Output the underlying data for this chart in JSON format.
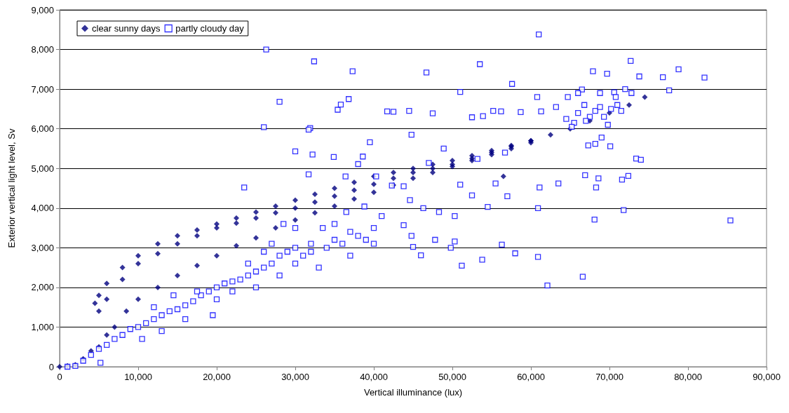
{
  "chart_data": {
    "type": "scatter",
    "xlabel": "Vertical illuminance (lux)",
    "ylabel": "Exterior vertical light level, Sv",
    "xlim": [
      0,
      90000
    ],
    "ylim": [
      0,
      9000
    ],
    "xticks": [
      0,
      {
        "value": 10000,
        "label": "10,000"
      },
      {
        "value": 20000,
        "label": "20,000"
      },
      {
        "value": 30000,
        "label": "30,000"
      },
      {
        "value": 40000,
        "label": "40,000"
      },
      {
        "value": 50000,
        "label": "50,000"
      },
      {
        "value": 60000,
        "label": "60,000"
      },
      {
        "value": 70000,
        "label": "70,000"
      },
      {
        "value": 80000,
        "label": "80,000"
      },
      {
        "value": 90000,
        "label": "90,000"
      }
    ],
    "yticks": [
      0,
      {
        "value": 1000,
        "label": "1,000"
      },
      {
        "value": 2000,
        "label": "2,000"
      },
      {
        "value": 3000,
        "label": "3,000"
      },
      {
        "value": 4000,
        "label": "4,000"
      },
      {
        "value": 5000,
        "label": "5,000"
      },
      {
        "value": 6000,
        "label": "6,000"
      },
      {
        "value": 7000,
        "label": "7,000"
      },
      {
        "value": 8000,
        "label": "8,000"
      },
      {
        "value": 9000,
        "label": "9,000"
      }
    ],
    "grid": "y",
    "legend": "top left",
    "series": [
      {
        "name": "clear sunny days",
        "color": "#000080",
        "marker": "diamond",
        "x": [
          0,
          1000,
          2000,
          3000,
          4000,
          4500,
          5000,
          6000,
          8000,
          10000,
          12500,
          15000,
          17500,
          20000,
          22500,
          25000,
          27500,
          30000,
          32500,
          35000,
          37500,
          40000,
          42500,
          45000,
          47500,
          50000,
          52500,
          55000,
          57500,
          60000,
          62500,
          65000,
          67500,
          70000,
          72500,
          74500,
          5000,
          6000,
          8000,
          10000,
          12500,
          15000,
          17500,
          20000,
          22500,
          25000,
          27500,
          30000,
          32500,
          35000,
          37500,
          40000,
          42500,
          45000,
          47500,
          50000,
          52500,
          55000,
          57500,
          60000,
          5000,
          6000,
          7000,
          8500,
          10000,
          12500,
          15000,
          17500,
          20000,
          22500,
          25000,
          27500,
          30000,
          32500,
          35000,
          37500,
          40000,
          42500,
          45000,
          47500,
          50000,
          52500,
          55000,
          57500,
          60000,
          56500
        ],
        "values": [
          0,
          20,
          50,
          200,
          400,
          1600,
          1800,
          2100,
          2500,
          2800,
          3100,
          3300,
          3450,
          3600,
          3750,
          3900,
          4050,
          4200,
          4350,
          4500,
          4650,
          4800,
          4900,
          5000,
          5100,
          5200,
          5320,
          5450,
          5580,
          5700,
          5850,
          6000,
          6200,
          6400,
          6600,
          6800,
          1400,
          1700,
          2200,
          2600,
          2850,
          3100,
          3300,
          3500,
          3620,
          3750,
          3880,
          4000,
          4150,
          4300,
          4450,
          4600,
          4750,
          4900,
          5000,
          5100,
          5250,
          5400,
          5550,
          5700,
          500,
          800,
          1000,
          1400,
          1700,
          2000,
          2300,
          2550,
          2800,
          3050,
          3250,
          3500,
          3700,
          3880,
          4050,
          4230,
          4400,
          4580,
          4750,
          4900,
          5050,
          5200,
          5350,
          5500,
          5650,
          4800
        ]
      },
      {
        "name": "partly cloudy day",
        "color": "#0000ff",
        "marker": "square",
        "x": [
          26300,
          61000,
          32400,
          37300,
          46700,
          53500,
          57600,
          28000,
          36800,
          26000,
          31900,
          31700,
          41700,
          42500,
          44500,
          47500,
          51000,
          52500,
          53900,
          55200,
          56200,
          58700,
          60800,
          61300,
          63200,
          64700,
          66500,
          67900,
          69700,
          70600,
          72700,
          73800,
          76800,
          77600,
          78800,
          82100,
          85400,
          62100,
          66600,
          60900,
          58000,
          49800,
          50300,
          51200,
          53800,
          56300,
          45000,
          46000,
          30000,
          34900,
          36400,
          35400,
          35800,
          38000,
          39500,
          38600,
          32200,
          31700,
          44800,
          23500,
          51000,
          52500,
          55500,
          57000,
          54500,
          60900,
          61100,
          63500,
          66900,
          68300,
          68600,
          71600,
          72400,
          71800,
          68100,
          73400,
          74000,
          70100,
          69000,
          67300,
          68200,
          56700,
          53200,
          48900,
          47000,
          40300,
          42300,
          43800,
          38800,
          41000,
          40000,
          43800,
          44800,
          47800,
          46300,
          44600,
          48300,
          50300,
          64500,
          65500,
          66000,
          66800,
          67500,
          68200,
          68800,
          69300,
          70200,
          65200,
          67000,
          69800,
          71000,
          71500,
          72000,
          72800,
          66000,
          68800,
          70800,
          1000,
          2000,
          3000,
          4000,
          5000,
          5200,
          6000,
          7000,
          8000,
          9000,
          10000,
          11000,
          12000,
          13000,
          14000,
          15000,
          16000,
          17000,
          18000,
          19000,
          20000,
          21000,
          22000,
          23000,
          24000,
          25000,
          26000,
          27000,
          28000,
          29000,
          30000,
          31000,
          32000,
          33000,
          34000,
          35000,
          36000,
          37000,
          38000,
          39000,
          40000,
          10500,
          12000,
          13000,
          14500,
          16000,
          17500,
          19500,
          20000,
          22000,
          24000,
          25000,
          26000,
          28000,
          30000,
          32000,
          33500,
          35000,
          37000,
          36500,
          30000,
          28500,
          27000
        ],
        "values": [
          8000,
          8380,
          7700,
          7450,
          7420,
          7630,
          7130,
          6680,
          6750,
          6040,
          6020,
          5980,
          6440,
          6430,
          6450,
          6390,
          6930,
          6290,
          6320,
          6450,
          6440,
          6420,
          6800,
          6440,
          6550,
          6800,
          6990,
          7450,
          7390,
          6920,
          7710,
          7320,
          7300,
          6970,
          7500,
          7290,
          3690,
          2050,
          2270,
          2770,
          2860,
          3000,
          3160,
          2550,
          2700,
          3080,
          3020,
          2810,
          5430,
          5290,
          4800,
          6480,
          6610,
          5110,
          5660,
          5300,
          5350,
          4850,
          5850,
          4520,
          4590,
          4320,
          4620,
          4300,
          4030,
          4000,
          4520,
          4620,
          4830,
          4520,
          4750,
          4720,
          4810,
          3950,
          3710,
          5250,
          5220,
          5560,
          5780,
          5580,
          5620,
          5400,
          5240,
          5500,
          5140,
          4800,
          4570,
          4550,
          4040,
          3800,
          3500,
          3570,
          3300,
          3200,
          4000,
          4200,
          3900,
          3800,
          6250,
          6150,
          6400,
          6600,
          6300,
          6450,
          6550,
          6300,
          6500,
          6050,
          6200,
          6100,
          6600,
          6450,
          7000,
          6900,
          6900,
          6900,
          6800,
          0,
          20,
          150,
          300,
          450,
          100,
          550,
          700,
          800,
          950,
          1000,
          1100,
          1200,
          1300,
          1400,
          1450,
          1550,
          1650,
          1800,
          1900,
          2000,
          2100,
          2150,
          2200,
          2300,
          2400,
          2500,
          2600,
          2800,
          2900,
          3000,
          2800,
          3100,
          2500,
          3000,
          3200,
          3100,
          3400,
          3300,
          3200,
          3100,
          700,
          1500,
          900,
          1800,
          1200,
          1900,
          1300,
          1700,
          1900,
          2600,
          2000,
          2900,
          2300,
          2600,
          2900,
          3500,
          3600,
          2800,
          3900,
          3500,
          3600,
          3100
        ]
      }
    ]
  }
}
